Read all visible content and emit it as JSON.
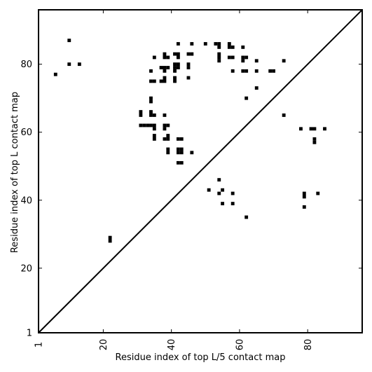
{
  "chart_data": {
    "type": "scatter",
    "xlabel": "Residue index of top L/5 contact map",
    "ylabel": "Residue index of top L contact map",
    "xlim": [
      1,
      96
    ],
    "ylim": [
      1,
      96
    ],
    "xticks": [
      1,
      20,
      40,
      60,
      80
    ],
    "yticks": [
      1,
      20,
      40,
      60,
      80
    ],
    "xtick_labels": [
      "1",
      "20",
      "40",
      "60",
      "80"
    ],
    "ytick_labels": [
      "1",
      "20",
      "40",
      "60",
      "80"
    ],
    "diagonal": true,
    "grid": false,
    "marker": "square",
    "marker_color": "#000000",
    "points": [
      [
        6,
        77
      ],
      [
        10,
        87
      ],
      [
        10,
        80
      ],
      [
        13,
        80
      ],
      [
        22,
        29
      ],
      [
        22,
        28
      ],
      [
        31,
        66
      ],
      [
        31,
        65
      ],
      [
        31,
        62
      ],
      [
        32,
        62
      ],
      [
        33,
        62
      ],
      [
        34,
        78
      ],
      [
        34,
        75
      ],
      [
        34,
        70
      ],
      [
        34,
        69
      ],
      [
        34,
        66
      ],
      [
        34,
        65
      ],
      [
        34,
        62
      ],
      [
        35,
        82
      ],
      [
        35,
        75
      ],
      [
        35,
        65
      ],
      [
        35,
        62
      ],
      [
        35,
        61
      ],
      [
        35,
        59
      ],
      [
        35,
        58
      ],
      [
        37,
        79
      ],
      [
        37,
        75
      ],
      [
        38,
        83
      ],
      [
        38,
        82
      ],
      [
        38,
        79
      ],
      [
        38,
        78
      ],
      [
        38,
        76
      ],
      [
        38,
        75
      ],
      [
        38,
        65
      ],
      [
        38,
        62
      ],
      [
        38,
        61
      ],
      [
        38,
        58
      ],
      [
        39,
        82
      ],
      [
        39,
        79
      ],
      [
        39,
        62
      ],
      [
        39,
        59
      ],
      [
        39,
        58
      ],
      [
        39,
        55
      ],
      [
        39,
        54
      ],
      [
        41,
        83
      ],
      [
        41,
        80
      ],
      [
        41,
        79
      ],
      [
        41,
        78
      ],
      [
        41,
        76
      ],
      [
        41,
        75
      ],
      [
        42,
        86
      ],
      [
        42,
        83
      ],
      [
        42,
        82
      ],
      [
        42,
        80
      ],
      [
        42,
        79
      ],
      [
        42,
        58
      ],
      [
        42,
        55
      ],
      [
        42,
        54
      ],
      [
        42,
        51
      ],
      [
        43,
        58
      ],
      [
        43,
        55
      ],
      [
        43,
        54
      ],
      [
        43,
        51
      ],
      [
        45,
        83
      ],
      [
        45,
        80
      ],
      [
        45,
        79
      ],
      [
        45,
        76
      ],
      [
        46,
        86
      ],
      [
        46,
        83
      ],
      [
        46,
        54
      ],
      [
        50,
        86
      ],
      [
        51,
        43
      ],
      [
        53,
        86
      ],
      [
        54,
        86
      ],
      [
        54,
        85
      ],
      [
        54,
        83
      ],
      [
        54,
        82
      ],
      [
        54,
        81
      ],
      [
        54,
        46
      ],
      [
        54,
        42
      ],
      [
        55,
        43
      ],
      [
        55,
        39
      ],
      [
        57,
        86
      ],
      [
        57,
        85
      ],
      [
        57,
        82
      ],
      [
        58,
        85
      ],
      [
        58,
        82
      ],
      [
        58,
        78
      ],
      [
        58,
        42
      ],
      [
        58,
        39
      ],
      [
        61,
        85
      ],
      [
        61,
        82
      ],
      [
        61,
        81
      ],
      [
        61,
        78
      ],
      [
        62,
        82
      ],
      [
        62,
        78
      ],
      [
        62,
        70
      ],
      [
        62,
        35
      ],
      [
        65,
        81
      ],
      [
        65,
        78
      ],
      [
        65,
        73
      ],
      [
        69,
        78
      ],
      [
        70,
        78
      ],
      [
        73,
        81
      ],
      [
        73,
        65
      ],
      [
        78,
        61
      ],
      [
        79,
        42
      ],
      [
        79,
        41
      ],
      [
        79,
        38
      ],
      [
        81,
        61
      ],
      [
        82,
        61
      ],
      [
        82,
        58
      ],
      [
        82,
        57
      ],
      [
        83,
        42
      ],
      [
        85,
        61
      ]
    ]
  }
}
